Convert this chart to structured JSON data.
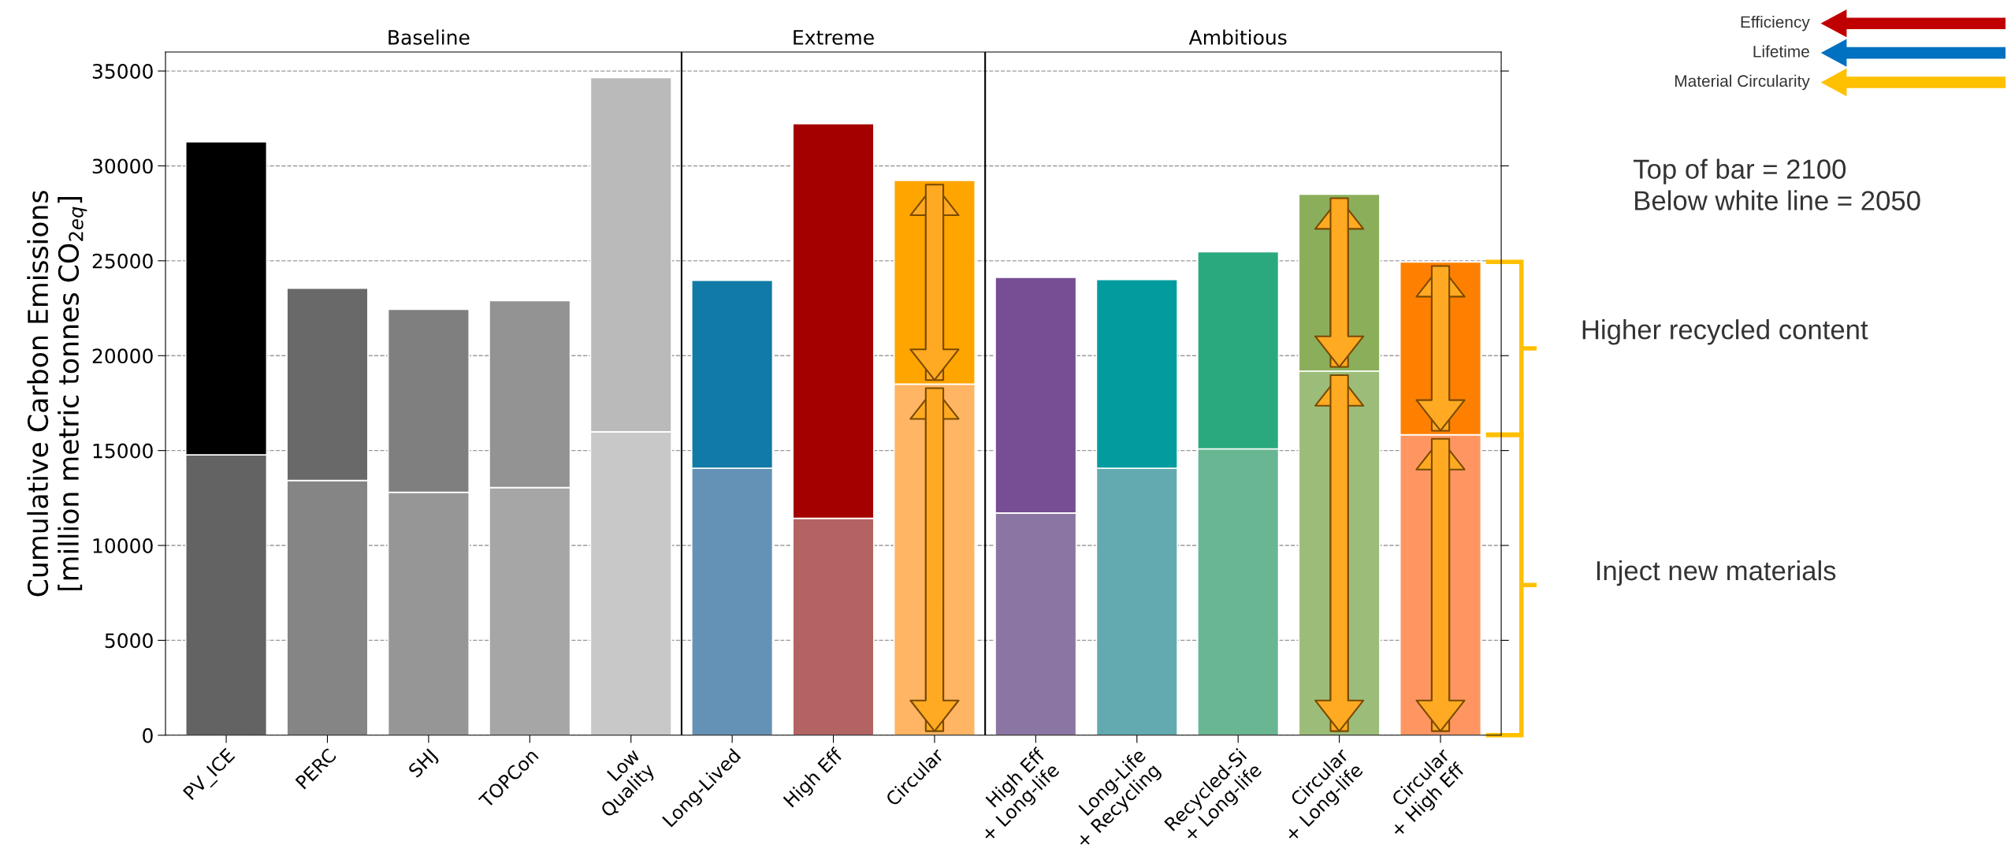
{
  "chart_data": {
    "type": "bar",
    "stacked": true,
    "ylabel": "Cumulative Carbon Emissions\n[million metric tonnes CO$_{2eq}$]",
    "categories": [
      "PV_ICE",
      "PERC",
      "SHJ",
      "TOPCon",
      "Low\nQuality",
      "Long-Lived",
      "High Eff",
      "Circular",
      "High Eff\n+ Long-life",
      "Long-Life\n+ Recycling",
      "Recycled-Si\n+ Long-life",
      "Circular\n+ Long-life",
      "Circular\n+ High Eff"
    ],
    "series": [
      {
        "colors": [
          "#636363",
          "#858585",
          "#969696",
          "#a6a6a6",
          "#c8c8c8",
          "#6492b6",
          "#b46363",
          "#ffb563",
          "#8b76a3",
          "#63aab0",
          "#69b692",
          "#9cbd79",
          "#ff9662"
        ],
        "values": [
          14770,
          13420,
          12800,
          13050,
          15990,
          14070,
          11430,
          18500,
          11710,
          14070,
          15090,
          19190,
          15830
        ]
      },
      {
        "colors": [
          "#000000",
          "#696969",
          "#7f7f7f",
          "#939393",
          "#bababa",
          "#117aa6",
          "#a40000",
          "#ffa500",
          "#774e94",
          "#039c9e",
          "#2aa97f",
          "#8bae5b",
          "#ff8000"
        ],
        "values": [
          16500,
          10130,
          9640,
          9850,
          18660,
          9900,
          20790,
          10730,
          12420,
          9940,
          10390,
          9320,
          9110
        ]
      }
    ],
    "ylim": [
      0,
      36000
    ],
    "yticks": [
      0,
      5000,
      10000,
      15000,
      20000,
      25000,
      30000,
      35000
    ],
    "grid": "y",
    "annotations": [
      "Baseline",
      "Extreme",
      "Ambitious",
      "Efficiency",
      "Lifetime",
      "Material Circularity",
      "Top of bar = 2100\nBelow white line = 2050",
      "Higher recycled content",
      "Inject new materials"
    ]
  }
}
